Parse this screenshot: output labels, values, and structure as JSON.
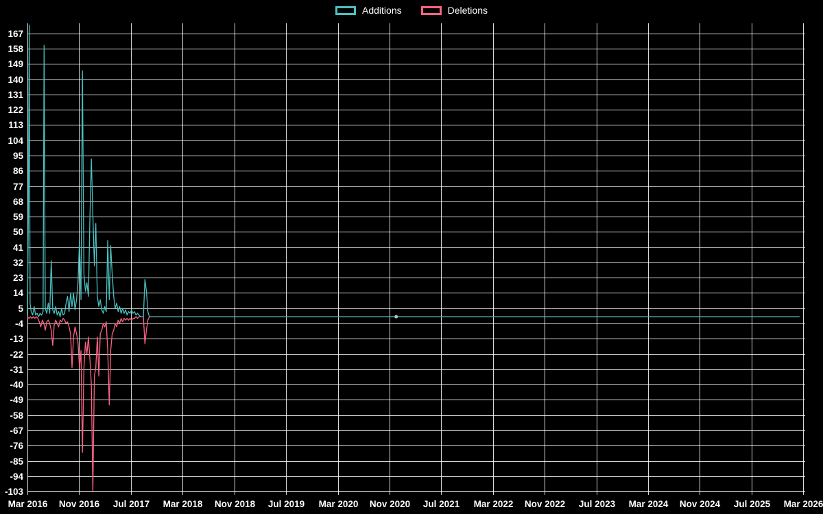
{
  "legend": {
    "items": [
      {
        "label": "Additions"
      },
      {
        "label": "Deletions"
      }
    ]
  },
  "colors": {
    "background": "#000000",
    "grid": "#ffffff",
    "text": "#ffffff",
    "additions": "#4bc0c0",
    "deletions": "#ff6384",
    "marker": "#9fc9c4"
  },
  "chart_data": {
    "type": "line",
    "title": "",
    "xlabel": "",
    "ylabel": "",
    "grid": true,
    "legend_position": "top",
    "x_unit": "weeks since Mar 2016",
    "x_tick_labels": [
      "Mar 2016",
      "Nov 2016",
      "Jul 2017",
      "Mar 2018",
      "Nov 2018",
      "Jul 2019",
      "Mar 2020",
      "Nov 2020",
      "Jul 2021",
      "Mar 2022",
      "Nov 2022",
      "Jul 2023",
      "Mar 2024",
      "Nov 2024",
      "Jul 2025",
      "Mar 2026"
    ],
    "x_tick_weeks": [
      0,
      34.78,
      69.57,
      104.35,
      139.13,
      173.91,
      208.7,
      243.48,
      278.26,
      313.04,
      347.83,
      382.61,
      417.39,
      452.17,
      486.96,
      521.74
    ],
    "y_ticks": [
      167,
      158,
      149,
      140,
      131,
      122,
      113,
      104,
      95,
      86,
      77,
      68,
      59,
      50,
      41,
      32,
      23,
      14,
      5,
      -4,
      -13,
      -22,
      -31,
      -40,
      -49,
      -58,
      -67,
      -76,
      -85,
      -94,
      -103
    ],
    "ylim": [
      -105,
      173
    ],
    "xlim_weeks": [
      0,
      523
    ],
    "series": [
      {
        "name": "Additions",
        "color": "#4bc0c0",
        "points": [
          [
            0,
            2
          ],
          [
            0.6,
            57
          ],
          [
            1.2,
            172
          ],
          [
            1.8,
            8
          ],
          [
            2.5,
            3
          ],
          [
            3.5,
            1
          ],
          [
            4.5,
            6
          ],
          [
            5.5,
            1
          ],
          [
            6.5,
            2
          ],
          [
            7.5,
            0
          ],
          [
            8.5,
            2
          ],
          [
            9.5,
            1
          ],
          [
            10.5,
            3
          ],
          [
            11.2,
            160
          ],
          [
            12,
            5
          ],
          [
            13,
            2
          ],
          [
            14,
            8
          ],
          [
            15,
            2
          ],
          [
            16,
            33
          ],
          [
            17,
            4
          ],
          [
            18,
            2
          ],
          [
            19,
            6
          ],
          [
            20,
            1
          ],
          [
            21,
            3
          ],
          [
            22,
            0
          ],
          [
            23,
            5
          ],
          [
            24,
            1
          ],
          [
            25,
            2
          ],
          [
            26,
            8
          ],
          [
            27,
            12
          ],
          [
            28,
            3
          ],
          [
            29,
            14
          ],
          [
            30,
            6
          ],
          [
            31,
            14
          ],
          [
            32,
            4
          ],
          [
            33,
            10
          ],
          [
            34,
            20
          ],
          [
            35,
            45
          ],
          [
            36,
            10
          ],
          [
            37,
            145
          ],
          [
            38,
            25
          ],
          [
            39,
            15
          ],
          [
            40,
            20
          ],
          [
            41,
            12
          ],
          [
            42,
            58
          ],
          [
            43,
            93
          ],
          [
            44,
            60
          ],
          [
            45,
            30
          ],
          [
            46,
            55
          ],
          [
            47,
            12
          ],
          [
            48,
            6
          ],
          [
            49,
            10
          ],
          [
            50,
            4
          ],
          [
            51,
            2
          ],
          [
            52,
            6
          ],
          [
            53,
            3
          ],
          [
            54,
            45
          ],
          [
            55,
            10
          ],
          [
            56,
            42
          ],
          [
            57,
            25
          ],
          [
            58,
            12
          ],
          [
            59,
            5
          ],
          [
            60,
            8
          ],
          [
            61,
            3
          ],
          [
            62,
            6
          ],
          [
            63,
            2
          ],
          [
            64,
            5
          ],
          [
            65,
            2
          ],
          [
            66,
            4
          ],
          [
            67,
            1
          ],
          [
            68,
            3
          ],
          [
            69,
            2
          ],
          [
            70,
            4
          ],
          [
            71,
            2
          ],
          [
            72,
            3
          ],
          [
            73,
            1
          ],
          [
            74,
            2
          ],
          [
            75,
            1
          ],
          [
            76,
            0
          ],
          [
            78,
            0
          ],
          [
            79,
            22
          ],
          [
            80,
            15
          ],
          [
            81,
            3
          ],
          [
            82,
            0
          ],
          [
            519,
            0
          ]
        ]
      },
      {
        "name": "Deletions",
        "color": "#ff6384",
        "points": [
          [
            0,
            0
          ],
          [
            1,
            -1
          ],
          [
            2,
            0
          ],
          [
            3,
            -1
          ],
          [
            4,
            0
          ],
          [
            5,
            -1
          ],
          [
            6,
            0
          ],
          [
            7,
            -1
          ],
          [
            8,
            -3
          ],
          [
            9,
            -6
          ],
          [
            10,
            -2
          ],
          [
            11,
            -4
          ],
          [
            12,
            -8
          ],
          [
            13,
            -3
          ],
          [
            14,
            -2
          ],
          [
            15,
            -4
          ],
          [
            16,
            -8
          ],
          [
            17,
            -17
          ],
          [
            18,
            -5
          ],
          [
            19,
            -2
          ],
          [
            20,
            -4
          ],
          [
            21,
            -6
          ],
          [
            22,
            -2
          ],
          [
            23,
            -3
          ],
          [
            24,
            -1
          ],
          [
            25,
            -2
          ],
          [
            26,
            -4
          ],
          [
            27,
            -3
          ],
          [
            28,
            -6
          ],
          [
            29,
            -10
          ],
          [
            30,
            -30
          ],
          [
            31,
            -12
          ],
          [
            32,
            -6
          ],
          [
            33,
            -10
          ],
          [
            34,
            -15
          ],
          [
            35,
            -30
          ],
          [
            36,
            -20
          ],
          [
            37,
            -80
          ],
          [
            38,
            -30
          ],
          [
            39,
            -15
          ],
          [
            40,
            -22
          ],
          [
            41,
            -12
          ],
          [
            42,
            -25
          ],
          [
            43,
            -40
          ],
          [
            44,
            -103
          ],
          [
            45,
            -35
          ],
          [
            46,
            -30
          ],
          [
            47,
            -12
          ],
          [
            48,
            -35
          ],
          [
            49,
            -10
          ],
          [
            50,
            -8
          ],
          [
            51,
            -4
          ],
          [
            52,
            -6
          ],
          [
            53,
            -3
          ],
          [
            54,
            -20
          ],
          [
            55,
            -52
          ],
          [
            56,
            -20
          ],
          [
            57,
            -10
          ],
          [
            58,
            -8
          ],
          [
            59,
            -4
          ],
          [
            60,
            -6
          ],
          [
            61,
            -2
          ],
          [
            62,
            -4
          ],
          [
            63,
            -1
          ],
          [
            64,
            -3
          ],
          [
            65,
            -1
          ],
          [
            66,
            -2
          ],
          [
            67,
            -1
          ],
          [
            68,
            -2
          ],
          [
            69,
            -1
          ],
          [
            70,
            -2
          ],
          [
            71,
            -1
          ],
          [
            72,
            -1
          ],
          [
            73,
            0
          ],
          [
            74,
            -1
          ],
          [
            75,
            0
          ],
          [
            78,
            0
          ],
          [
            79,
            -16
          ],
          [
            80,
            -8
          ],
          [
            81,
            -2
          ],
          [
            82,
            0
          ],
          [
            519,
            0
          ]
        ]
      }
    ],
    "marker_point": {
      "week": 248,
      "value": 0
    }
  }
}
